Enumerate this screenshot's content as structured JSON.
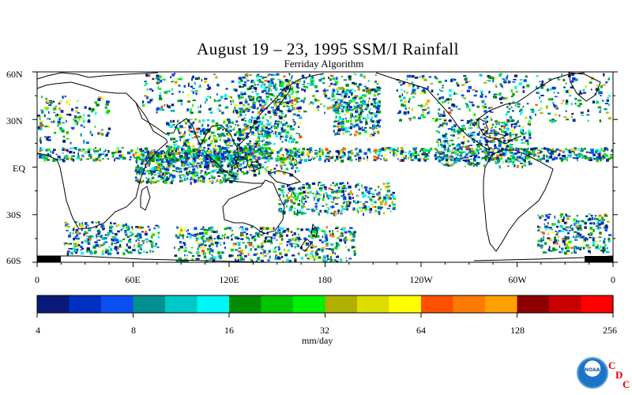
{
  "title": "August 19 – 23, 1995 SSM/I Rainfall",
  "subtitle": "Ferriday Algorithm",
  "lat_labels": [
    "60N",
    "30N",
    "EQ",
    "30S",
    "60S"
  ],
  "lon_labels": [
    "0",
    "60E",
    "120E",
    "180",
    "120W",
    "60W",
    "0"
  ],
  "colorbar": {
    "colors": [
      "#0a1a7a",
      "#0030c0",
      "#0a50f0",
      "#009090",
      "#00c8c8",
      "#00f5f5",
      "#008c00",
      "#00c400",
      "#00f000",
      "#b0b000",
      "#dddd00",
      "#ffff00",
      "#ff5000",
      "#ff7a00",
      "#ffa000",
      "#8c0000",
      "#c80000",
      "#ff0000"
    ],
    "tick_labels": [
      "4",
      "8",
      "16",
      "32",
      "64",
      "128",
      "256"
    ],
    "units": "mm/day"
  },
  "logo": {
    "text": "NOAA",
    "letters": [
      "C",
      "D",
      "C"
    ]
  }
}
